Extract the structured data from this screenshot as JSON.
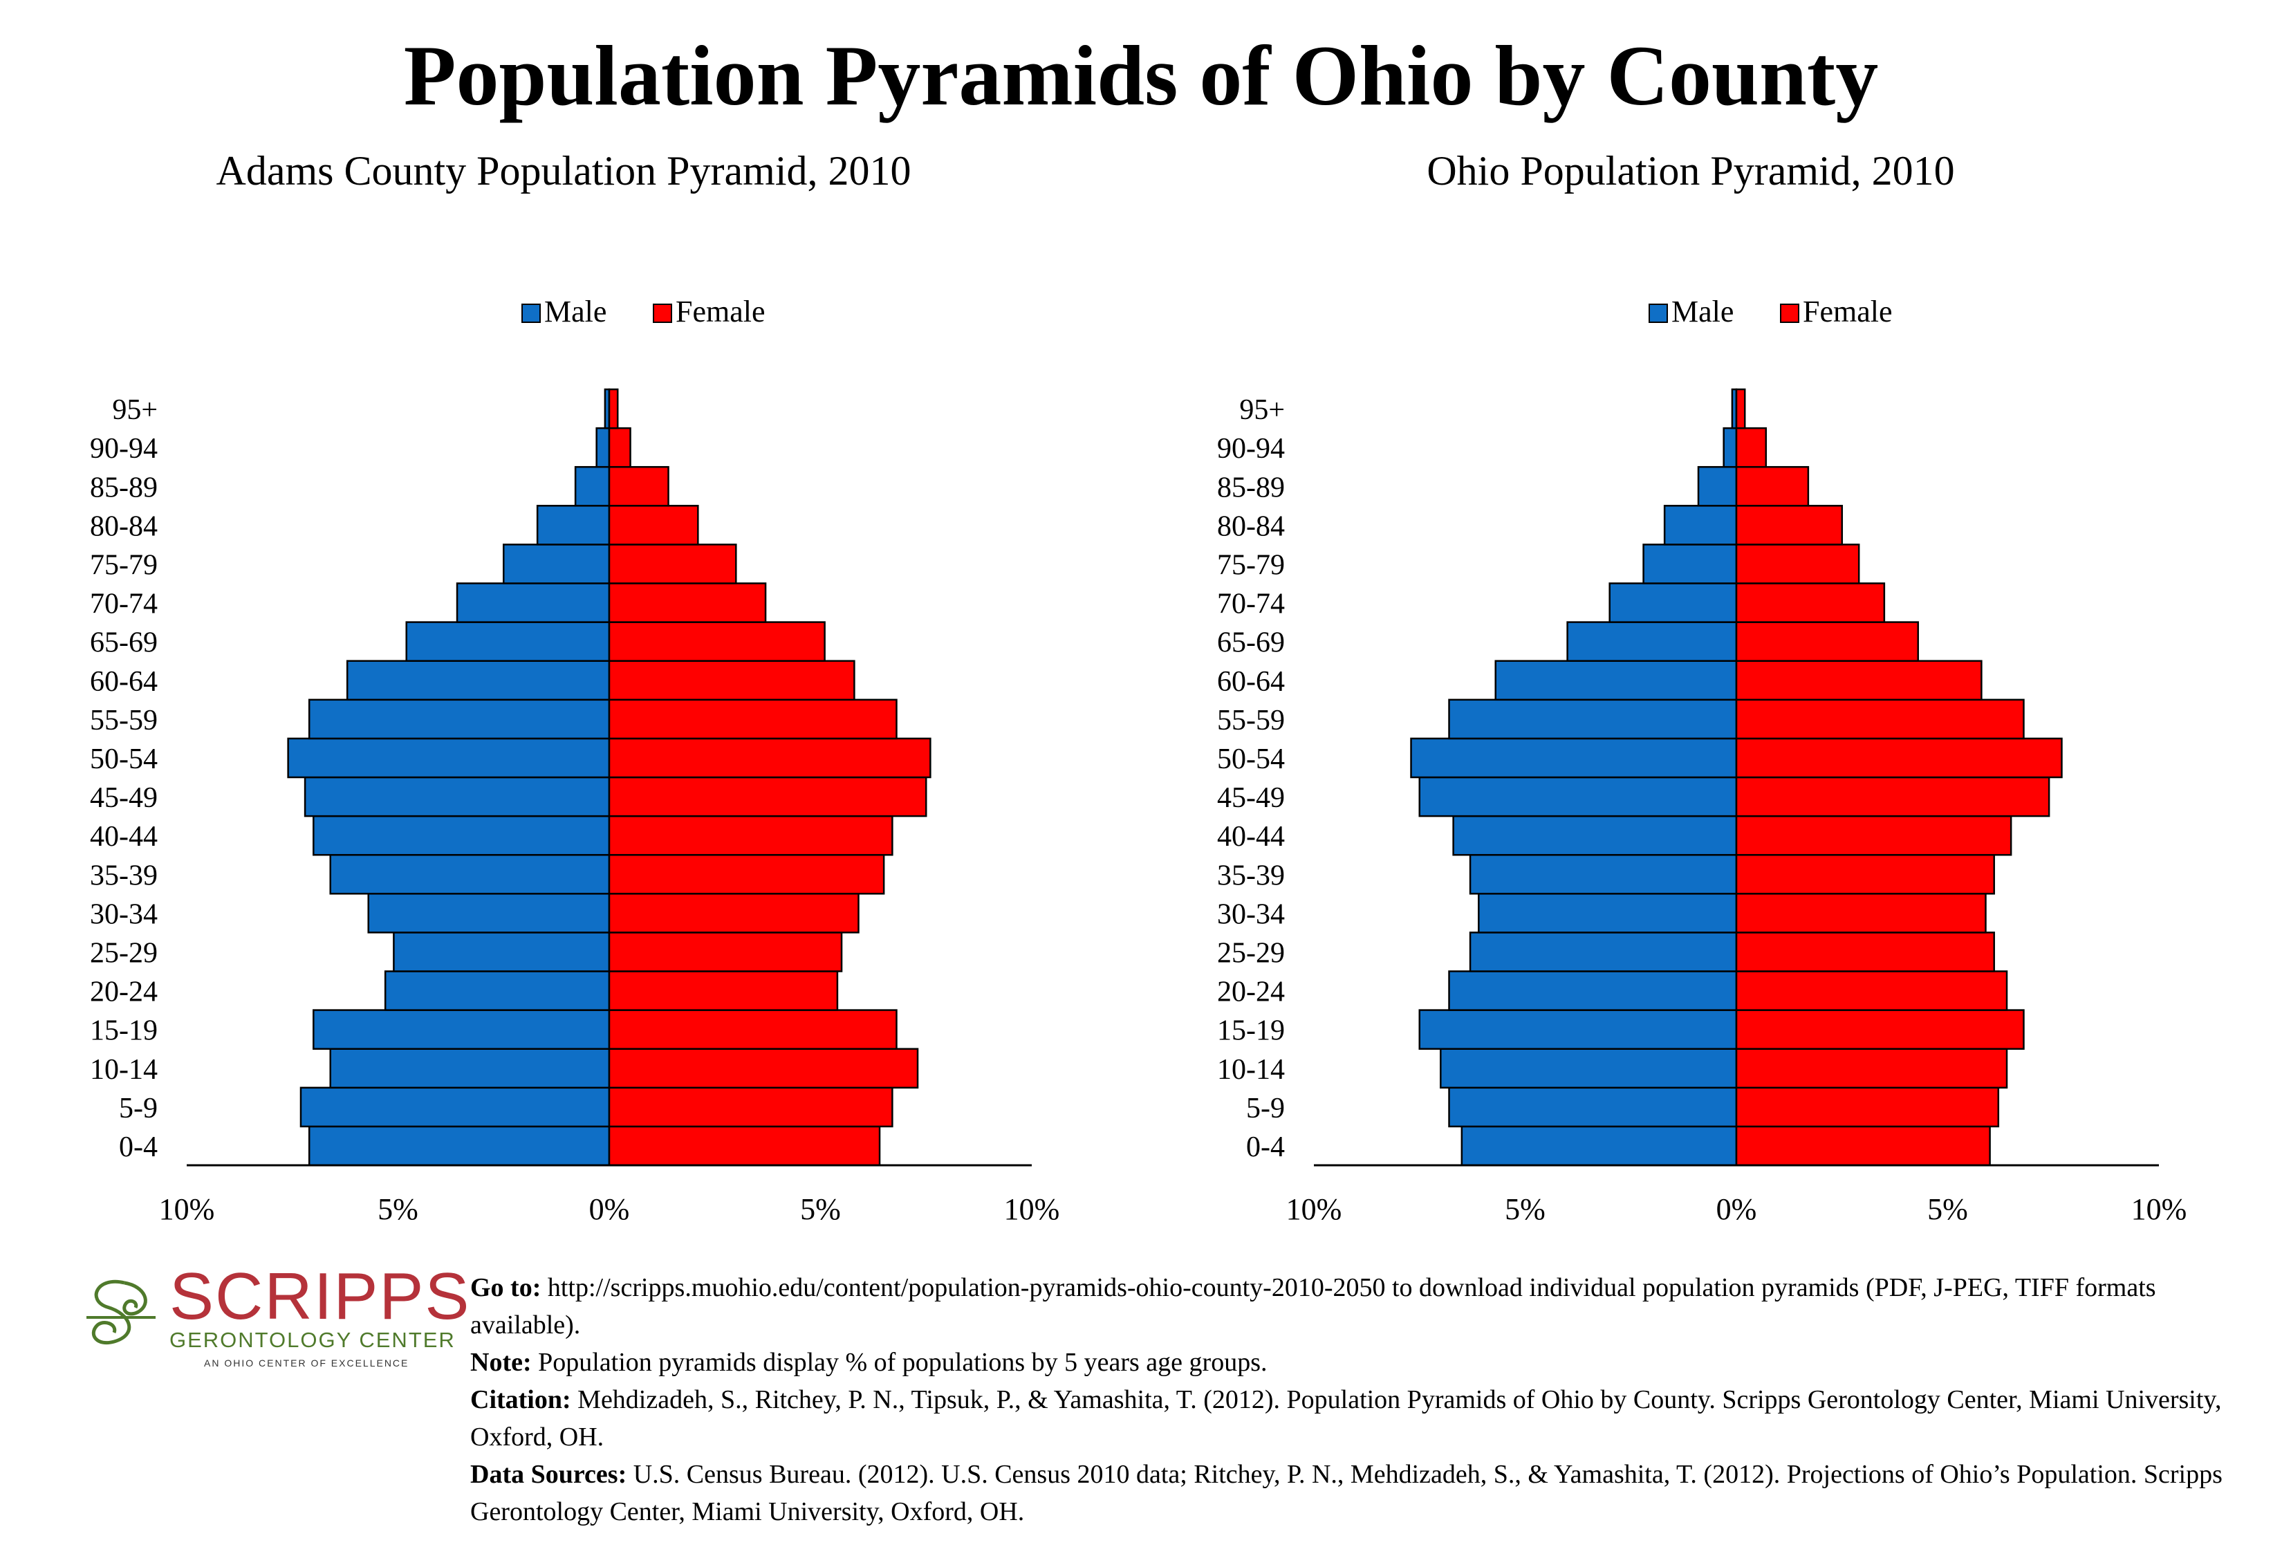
{
  "title": "Population Pyramids of Ohio by County",
  "chart_data": [
    {
      "type": "bar",
      "title": "Adams County Population Pyramid, 2010",
      "categories": [
        "0-4",
        "5-9",
        "10-14",
        "15-19",
        "20-24",
        "25-29",
        "30-34",
        "35-39",
        "40-44",
        "45-49",
        "50-54",
        "55-59",
        "60-64",
        "65-69",
        "70-74",
        "75-79",
        "80-84",
        "85-89",
        "90-94",
        "95+"
      ],
      "series": [
        {
          "name": "Male",
          "color": "#0f6fc6",
          "values": [
            7.1,
            7.3,
            6.6,
            7.0,
            5.3,
            5.1,
            5.7,
            6.6,
            7.0,
            7.2,
            7.6,
            7.1,
            6.2,
            4.8,
            3.6,
            2.5,
            1.7,
            0.8,
            0.3,
            0.1
          ]
        },
        {
          "name": "Female",
          "color": "#ff0000",
          "values": [
            6.4,
            6.7,
            7.3,
            6.8,
            5.4,
            5.5,
            5.9,
            6.5,
            6.7,
            7.5,
            7.6,
            6.8,
            5.8,
            5.1,
            3.7,
            3.0,
            2.1,
            1.4,
            0.5,
            0.2
          ]
        }
      ],
      "xlim": [
        -10,
        10
      ],
      "ticks": [
        "10%",
        "5%",
        "0%",
        "5%",
        "10%"
      ],
      "legend": "top-center",
      "grid": false
    },
    {
      "type": "bar",
      "title": "Ohio Population Pyramid, 2010",
      "categories": [
        "0-4",
        "5-9",
        "10-14",
        "15-19",
        "20-24",
        "25-29",
        "30-34",
        "35-39",
        "40-44",
        "45-49",
        "50-54",
        "55-59",
        "60-64",
        "65-69",
        "70-74",
        "75-79",
        "80-84",
        "85-89",
        "90-94",
        "95+"
      ],
      "series": [
        {
          "name": "Male",
          "color": "#0f6fc6",
          "values": [
            6.5,
            6.8,
            7.0,
            7.5,
            6.8,
            6.3,
            6.1,
            6.3,
            6.7,
            7.5,
            7.7,
            6.8,
            5.7,
            4.0,
            3.0,
            2.2,
            1.7,
            0.9,
            0.3,
            0.1
          ]
        },
        {
          "name": "Female",
          "color": "#ff0000",
          "values": [
            6.0,
            6.2,
            6.4,
            6.8,
            6.4,
            6.1,
            5.9,
            6.1,
            6.5,
            7.4,
            7.7,
            6.8,
            5.8,
            4.3,
            3.5,
            2.9,
            2.5,
            1.7,
            0.7,
            0.2
          ]
        }
      ],
      "xlim": [
        -10,
        10
      ],
      "ticks": [
        "10%",
        "5%",
        "0%",
        "5%",
        "10%"
      ],
      "legend": "top-center",
      "grid": false
    }
  ],
  "footer": {
    "goto_label": "Go to:",
    "goto_text": "http://scripps.muohio.edu/content/population-pyramids-ohio-county-2010-2050 to download individual population pyramids (PDF, J-PEG, TIFF formats available).",
    "note_label": "Note:",
    "note_text": "Population pyramids display % of populations by 5 years age groups.",
    "citation_label": "Citation:",
    "citation_text": "Mehdizadeh, S., Ritchey, P. N., Tipsuk, P., & Yamashita, T. (2012). Population Pyramids of Ohio by County. Scripps Gerontology Center, Miami University, Oxford, OH.",
    "sources_label": "Data Sources:",
    "sources_text": "U.S. Census Bureau. (2012). U.S. Census 2010 data; Ritchey, P. N., Mehdizadeh, S., & Yamashita, T. (2012). Projections of Ohio’s Population. Scripps Gerontology Center, Miami University, Oxford, OH."
  },
  "logo": {
    "name": "SCRIPPS",
    "subtitle": "GERONTOLOGY CENTER",
    "tagline": "AN OHIO CENTER OF EXCELLENCE"
  }
}
